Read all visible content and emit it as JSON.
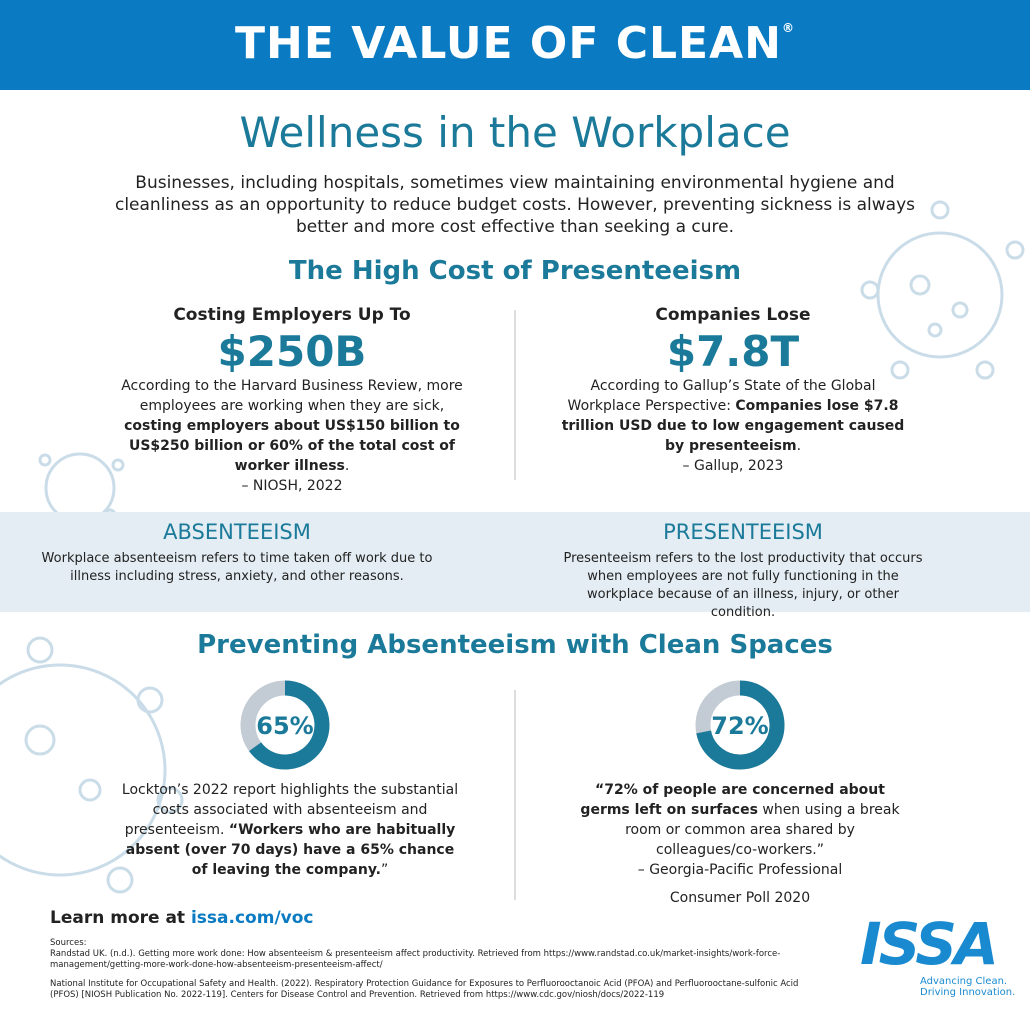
{
  "header": {
    "title": "THE VALUE OF CLEAN",
    "mark": "®"
  },
  "intro": {
    "heading": "Wellness in the Workplace",
    "text": "Businesses, including hospitals, sometimes view maintaining environmental hygiene and cleanliness as an opportunity to reduce budget costs. However, preventing sickness is always better and more cost effective than seeking a cure."
  },
  "presenteeism_cost": {
    "heading": "The High Cost of Presenteeism",
    "columns": [
      {
        "label": "Costing Employers Up To",
        "figure": "$250B",
        "body": [
          {
            "text": "According to the Harvard Business Review, more employees are working when they are sick, ",
            "bold": false
          },
          {
            "text": "costing employers about US$150 billion to US$250 billion or 60% of the total cost of worker illness",
            "bold": true
          },
          {
            "text": ".",
            "bold": false
          }
        ],
        "source": "– NIOSH, 2022"
      },
      {
        "label": "Companies Lose",
        "figure": "$7.8T",
        "body": [
          {
            "text": "According to Gallup’s State of the Global Workplace Perspective: ",
            "bold": false
          },
          {
            "text": "Companies lose $7.8 trillion USD due to low engagement caused by presenteeism",
            "bold": true
          },
          {
            "text": ".",
            "bold": false
          }
        ],
        "source": "– Gallup, 2023"
      }
    ]
  },
  "definitions": [
    {
      "term": "ABSENTEEISM",
      "text": "Workplace absenteeism refers to time taken off work due to illness including stress, anxiety, and other reasons."
    },
    {
      "term": "PRESENTEEISM",
      "text": "Presenteeism refers to the lost productivity that occurs when employees are not fully functioning in the workplace because of an illness, injury, or other condition."
    }
  ],
  "prevention": {
    "heading": "Preventing Absenteeism with Clean Spaces",
    "stats": [
      {
        "value": 65,
        "label": "65%",
        "body": [
          {
            "text": "Lockton’s 2022 report highlights the substantial costs associated with absenteeism and presenteeism. ",
            "bold": false
          },
          {
            "text": "“Workers who are habitually absent (over 70 days) have a 65% chance of leaving the company.",
            "bold": true
          },
          {
            "text": "”",
            "bold": false
          }
        ]
      },
      {
        "value": 72,
        "label": "72%",
        "body": [
          {
            "text": "“72% of people are concerned about germs left on surfaces",
            "bold": true
          },
          {
            "text": " when using a break room or common area shared by colleagues/co-workers.”",
            "bold": false
          }
        ],
        "source": [
          "– Georgia-Pacific Professional",
          "Consumer Poll 2020"
        ]
      }
    ]
  },
  "footer": {
    "learn_more": "Learn more at",
    "link": "issa.com/voc",
    "sources_heading": "Sources:",
    "sources": [
      "Randstad UK. (n.d.). Getting more work done: How absenteeism & presenteeism affect productivity. Retrieved from https://www.randstad.co.uk/market-insights/work-force-management/getting-more-work-done-how-absenteeism-presenteeism-affect/",
      "National Institute for Occupational Safety and Health. (2022). Respiratory Protection Guidance for Exposures to Perfluorooctanoic Acid (PFOA) and Perfluorooctane-sulfonic Acid (PFOS) [NIOSH Publication No. 2022-119]. Centers for Disease Control and Prevention. Retrieved from https://www.cdc.gov/niosh/docs/2022-119"
    ],
    "logo": "ISSA",
    "tagline": [
      "Advancing Clean.",
      "Driving Innovation."
    ]
  }
}
